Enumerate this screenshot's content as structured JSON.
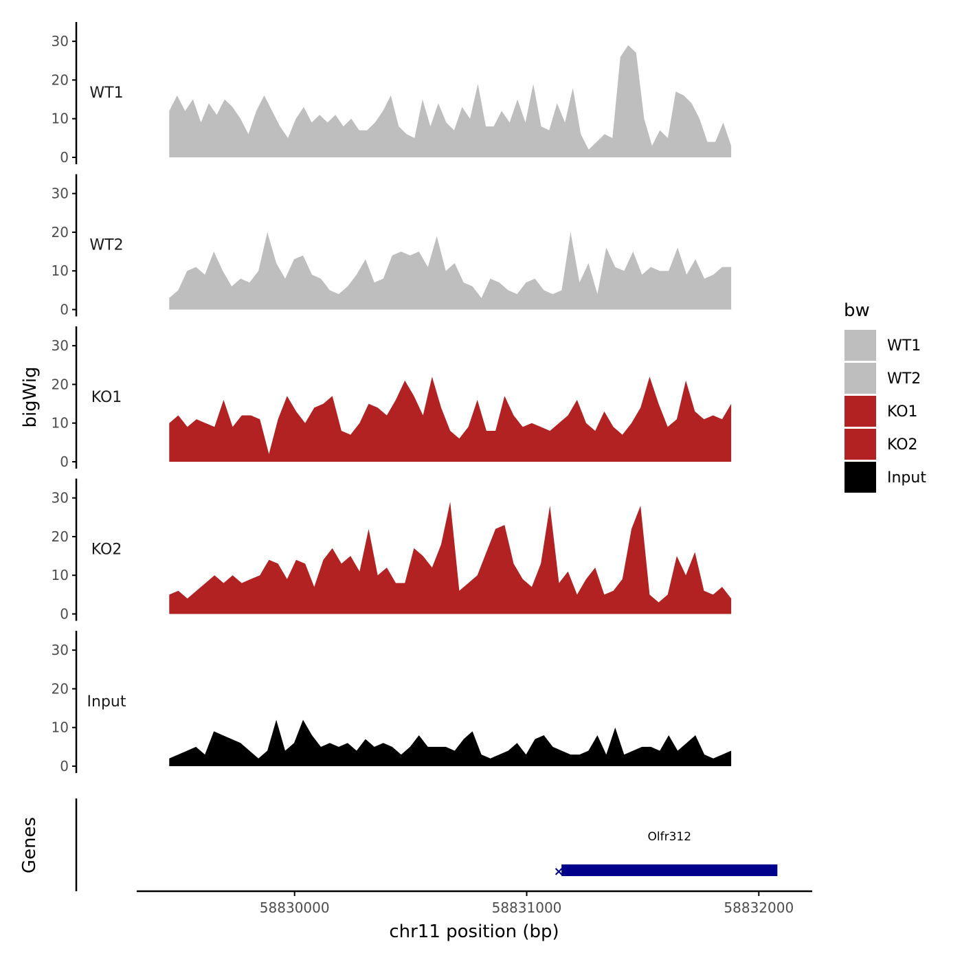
{
  "chart_data": {
    "type": "area",
    "ylabel": "bigWig",
    "xlabel": "chr11 position (bp)",
    "ylim": [
      0,
      35
    ],
    "yticks": [
      0,
      10,
      20,
      30
    ],
    "xlim": [
      58829320,
      58832230
    ],
    "xticks": [
      58830000,
      58831000,
      58832000
    ],
    "xtick_labels": [
      "58830000",
      "58831000",
      "58832000"
    ],
    "x_start": 58829460,
    "x_step": 36.68,
    "legend": {
      "title": "bw",
      "position": "right",
      "entries": [
        {
          "label": "WT1",
          "color": "#bebebe"
        },
        {
          "label": "WT2",
          "color": "#bebebe"
        },
        {
          "label": "KO1",
          "color": "#b22222"
        },
        {
          "label": "KO2",
          "color": "#b22222"
        },
        {
          "label": "Input",
          "color": "#000000"
        }
      ]
    },
    "series": [
      {
        "name": "WT1",
        "color": "#bebebe",
        "values": [
          12,
          16,
          12,
          15,
          9,
          14,
          11,
          15,
          13,
          10,
          6,
          12,
          16,
          12,
          8,
          5,
          10,
          13,
          9,
          11,
          9,
          11,
          8,
          10,
          7,
          7,
          9,
          12,
          16,
          8,
          6,
          5,
          15,
          8,
          14,
          9,
          7,
          13,
          10,
          19,
          8,
          8,
          12,
          9,
          15,
          9,
          19,
          8,
          7,
          14,
          9,
          18,
          6,
          2,
          4,
          6,
          5,
          26,
          29,
          27,
          10,
          3,
          7,
          5,
          17,
          16,
          14,
          10,
          4,
          4,
          9,
          3
        ]
      },
      {
        "name": "WT2",
        "color": "#bebebe",
        "values": [
          3,
          5,
          10,
          11,
          9,
          15,
          10,
          6,
          8,
          7,
          10,
          20,
          12,
          8,
          13,
          14,
          9,
          8,
          5,
          4,
          6,
          9,
          13,
          7,
          8,
          14,
          15,
          14,
          15,
          11,
          19,
          10,
          12,
          7,
          6,
          3,
          8,
          7,
          5,
          4,
          7,
          8,
          5,
          4,
          5,
          20,
          7,
          12,
          4,
          16,
          11,
          10,
          15,
          9,
          11,
          10,
          10,
          16,
          9,
          13,
          8,
          9,
          11,
          11
        ]
      },
      {
        "name": "KO1",
        "color": "#b22222",
        "values": [
          10,
          12,
          9,
          11,
          10,
          9,
          16,
          9,
          12,
          12,
          11,
          2,
          11,
          17,
          13,
          10,
          14,
          15,
          17,
          8,
          7,
          10,
          15,
          14,
          12,
          16,
          21,
          17,
          12,
          22,
          14,
          8,
          6,
          9,
          16,
          8,
          8,
          17,
          12,
          9,
          10,
          9,
          8,
          10,
          12,
          16,
          10,
          8,
          13,
          9,
          7,
          10,
          14,
          22,
          15,
          9,
          11,
          21,
          13,
          11,
          12,
          11,
          15
        ]
      },
      {
        "name": "KO2",
        "color": "#b22222",
        "values": [
          5,
          6,
          4,
          6,
          8,
          10,
          8,
          10,
          8,
          9,
          10,
          14,
          13,
          9,
          14,
          13,
          7,
          14,
          17,
          13,
          15,
          11,
          22,
          10,
          12,
          8,
          8,
          17,
          15,
          12,
          18,
          29,
          6,
          8,
          10,
          16,
          22,
          23,
          13,
          9,
          7,
          13,
          28,
          8,
          11,
          5,
          9,
          12,
          5,
          6,
          9,
          22,
          28,
          5,
          3,
          5,
          15,
          10,
          16,
          6,
          5,
          7,
          4
        ]
      },
      {
        "name": "Input",
        "color": "#000000",
        "values": [
          2,
          3,
          4,
          5,
          3,
          9,
          8,
          7,
          6,
          4,
          2,
          4,
          12,
          4,
          6,
          12,
          8,
          5,
          6,
          5,
          6,
          4,
          7,
          5,
          6,
          5,
          3,
          5,
          8,
          5,
          5,
          5,
          4,
          7,
          9,
          3,
          2,
          3,
          4,
          6,
          3,
          7,
          8,
          5,
          4,
          3,
          3,
          4,
          8,
          3,
          10,
          3,
          4,
          5,
          5,
          4,
          8,
          4,
          6,
          8,
          3,
          2,
          3,
          4
        ]
      }
    ],
    "genes": {
      "title": "Genes",
      "items": [
        {
          "name": "Olfr312",
          "start": 58831150,
          "end": 58832080,
          "color": "#00008b",
          "strand_marker": "×"
        }
      ]
    }
  }
}
